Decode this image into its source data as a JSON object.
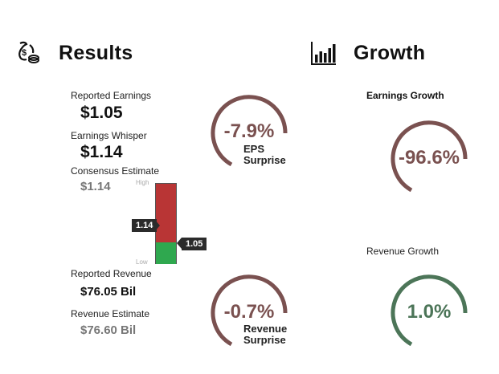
{
  "results": {
    "title": "Results",
    "icon": "money-bag-icon",
    "reported_earnings_label": "Reported Earnings",
    "reported_earnings_value": "$1.05",
    "whisper_label": "Earnings Whisper",
    "whisper_value": "$1.14",
    "consensus_label": "Consensus Estimate",
    "consensus_value": "$1.14",
    "eps_surprise_value": "-7.9%",
    "eps_surprise_cap1": "EPS",
    "eps_surprise_cap2": "Surprise",
    "range_high_label": "High",
    "range_low_label": "Low",
    "whisper_marker": "1.14",
    "actual_marker": "1.05",
    "reported_revenue_label": "Reported Revenue",
    "reported_revenue_value": "$76.05 Bil",
    "revenue_estimate_label": "Revenue Estimate",
    "revenue_estimate_value": "$76.60 Bil",
    "revenue_surprise_value": "-0.7%",
    "revenue_surprise_cap1": "Revenue",
    "revenue_surprise_cap2": "Surprise"
  },
  "growth": {
    "title": "Growth",
    "icon": "bar-chart-icon",
    "earnings_growth_label": "Earnings Growth",
    "earnings_growth_value": "-96.6%",
    "revenue_growth_label": "Revenue Growth",
    "revenue_growth_value": "1.0%"
  },
  "colors": {
    "negative": "#7a5150",
    "positive": "#4c7558",
    "bar_red": "#b93535",
    "bar_green": "#2fa84f"
  }
}
